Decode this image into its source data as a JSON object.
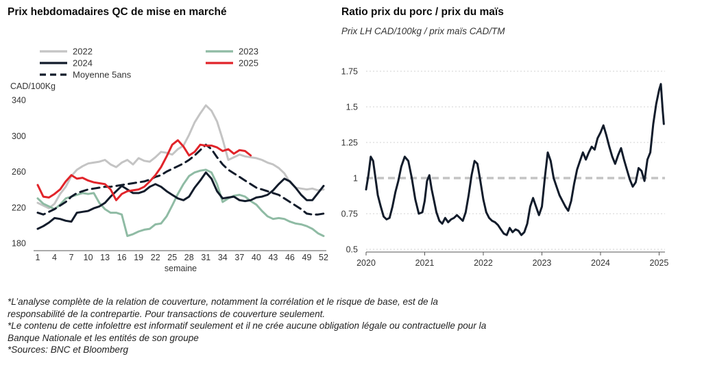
{
  "chart_data": [
    {
      "type": "line",
      "title": "Prix hebdomadaires QC de mise en marché",
      "ylabel": "CAD/100Kg",
      "xlabel": "semaine",
      "ylim": [
        180,
        340
      ],
      "yticks": [
        180,
        220,
        260,
        300,
        340
      ],
      "xlim": [
        1,
        52
      ],
      "xticks": [
        1,
        4,
        7,
        10,
        13,
        16,
        19,
        22,
        25,
        28,
        31,
        34,
        37,
        40,
        43,
        46,
        49,
        52
      ],
      "legend": "top",
      "grid": false,
      "series": [
        {
          "name": "2022",
          "color": "#c4c4c4",
          "dash": "solid",
          "x": [
            1,
            2,
            3,
            4,
            5,
            6,
            7,
            8,
            9,
            10,
            11,
            12,
            13,
            14,
            15,
            16,
            17,
            18,
            19,
            20,
            21,
            22,
            23,
            24,
            25,
            26,
            27,
            28,
            29,
            30,
            31,
            32,
            33,
            34,
            35,
            36,
            37,
            38,
            39,
            40,
            41,
            42,
            43,
            44,
            45,
            46,
            47,
            48,
            49,
            50,
            51,
            52
          ],
          "values": [
            225,
            222,
            219,
            224,
            235,
            243,
            255,
            262,
            266,
            269,
            270,
            271,
            273,
            268,
            265,
            270,
            273,
            268,
            275,
            272,
            271,
            276,
            282,
            281,
            279,
            285,
            289,
            301,
            315,
            325,
            334,
            328,
            316,
            296,
            273,
            276,
            279,
            277,
            276,
            275,
            273,
            270,
            268,
            264,
            258,
            248,
            242,
            241,
            240,
            241,
            239,
            240
          ]
        },
        {
          "name": "2023",
          "color": "#8fbba4",
          "dash": "solid",
          "x": [
            1,
            2,
            3,
            4,
            5,
            6,
            7,
            8,
            9,
            10,
            11,
            12,
            13,
            14,
            15,
            16,
            17,
            18,
            19,
            20,
            21,
            22,
            23,
            24,
            25,
            26,
            27,
            28,
            29,
            30,
            31,
            32,
            33,
            34,
            35,
            36,
            37,
            38,
            39,
            40,
            41,
            42,
            43,
            44,
            45,
            46,
            47,
            48,
            49,
            50,
            51,
            52
          ],
          "values": [
            230,
            224,
            221,
            218,
            223,
            230,
            232,
            234,
            236,
            235,
            236,
            225,
            218,
            214,
            214,
            212,
            188,
            190,
            193,
            195,
            196,
            201,
            202,
            210,
            222,
            235,
            246,
            255,
            259,
            261,
            262,
            259,
            246,
            226,
            230,
            233,
            234,
            232,
            227,
            223,
            216,
            210,
            207,
            208,
            207,
            204,
            202,
            201,
            199,
            196,
            191,
            188
          ]
        },
        {
          "name": "2024",
          "color": "#121c2b",
          "dash": "solid",
          "x": [
            1,
            2,
            3,
            4,
            5,
            6,
            7,
            8,
            9,
            10,
            11,
            12,
            13,
            14,
            15,
            16,
            17,
            18,
            19,
            20,
            21,
            22,
            23,
            24,
            25,
            26,
            27,
            28,
            29,
            30,
            31,
            32,
            33,
            34,
            35,
            36,
            37,
            38,
            39,
            40,
            41,
            42,
            43,
            44,
            45,
            46,
            47,
            48,
            49,
            50,
            51,
            52
          ],
          "values": [
            196,
            199,
            203,
            208,
            207,
            205,
            204,
            214,
            215,
            216,
            219,
            221,
            225,
            232,
            238,
            244,
            240,
            236,
            236,
            238,
            243,
            246,
            243,
            238,
            234,
            230,
            228,
            232,
            242,
            250,
            259,
            252,
            238,
            230,
            231,
            232,
            228,
            227,
            228,
            231,
            232,
            234,
            239,
            246,
            252,
            249,
            242,
            234,
            228,
            228,
            236,
            244
          ]
        },
        {
          "name": "2025",
          "color": "#e1242a",
          "dash": "solid",
          "x": [
            1,
            2,
            3,
            4,
            5,
            6,
            7,
            8,
            9,
            10,
            11,
            12,
            13,
            14,
            15,
            16,
            17,
            18,
            19,
            20,
            21,
            22,
            23,
            24,
            25,
            26,
            27,
            28,
            29,
            30,
            31,
            32,
            33,
            34,
            35,
            36,
            37,
            38,
            39
          ],
          "values": [
            245,
            232,
            231,
            235,
            240,
            249,
            256,
            252,
            253,
            250,
            248,
            247,
            246,
            240,
            228,
            235,
            238,
            239,
            240,
            243,
            249,
            256,
            265,
            277,
            290,
            295,
            288,
            278,
            282,
            290,
            289,
            289,
            287,
            283,
            285,
            280,
            284,
            283,
            278
          ]
        },
        {
          "name": "Moyenne 5ans",
          "color": "#121c2b",
          "dash": "dashed",
          "x": [
            1,
            2,
            3,
            4,
            5,
            6,
            7,
            8,
            9,
            10,
            11,
            12,
            13,
            14,
            15,
            16,
            17,
            18,
            19,
            20,
            21,
            22,
            23,
            24,
            25,
            26,
            27,
            28,
            29,
            30,
            31,
            32,
            33,
            34,
            35,
            36,
            37,
            38,
            39,
            40,
            41,
            42,
            43,
            44,
            45,
            46,
            47,
            48,
            49,
            50,
            51,
            52
          ],
          "values": [
            214,
            212,
            215,
            218,
            222,
            226,
            232,
            236,
            238,
            240,
            241,
            242,
            243,
            243,
            244,
            245,
            246,
            247,
            248,
            249,
            251,
            254,
            256,
            260,
            263,
            266,
            269,
            273,
            278,
            284,
            290,
            285,
            276,
            268,
            262,
            258,
            254,
            250,
            246,
            242,
            240,
            238,
            236,
            234,
            230,
            226,
            222,
            218,
            213,
            212,
            212,
            213
          ]
        }
      ]
    },
    {
      "type": "line",
      "title": "Ratio prix du porc / prix du maïs",
      "subtitle": "Prix LH CAD/100kg / prix maïs CAD/TM",
      "ylim": [
        0.5,
        1.75
      ],
      "yticks": [
        0.5,
        0.75,
        1,
        1.25,
        1.5,
        1.75
      ],
      "ytick_labels": [
        "0.5",
        "0.75",
        "1",
        "1.25",
        "1.5",
        "1.75"
      ],
      "xlim": [
        2020.0,
        2025.1
      ],
      "xticks": [
        "2020",
        "2021",
        "2022",
        "2023",
        "2024",
        "2025"
      ],
      "grid": "horizontal dotted",
      "reference_line": {
        "value": 1,
        "color": "#c4c4c4",
        "dash": "dashed"
      },
      "series": [
        {
          "color": "#121c2b",
          "x": [
            2020.0,
            2020.04,
            2020.08,
            2020.12,
            2020.16,
            2020.2,
            2020.25,
            2020.3,
            2020.35,
            2020.4,
            2020.45,
            2020.5,
            2020.55,
            2020.6,
            2020.66,
            2020.72,
            2020.78,
            2020.84,
            2020.9,
            2020.96,
            2021.0,
            2021.04,
            2021.08,
            2021.12,
            2021.16,
            2021.2,
            2021.25,
            2021.3,
            2021.35,
            2021.4,
            2021.45,
            2021.5,
            2021.55,
            2021.6,
            2021.65,
            2021.7,
            2021.75,
            2021.8,
            2021.85,
            2021.9,
            2021.95,
            2022.0,
            2022.05,
            2022.1,
            2022.15,
            2022.2,
            2022.25,
            2022.3,
            2022.35,
            2022.4,
            2022.45,
            2022.5,
            2022.55,
            2022.6,
            2022.65,
            2022.7,
            2022.75,
            2022.8,
            2022.85,
            2022.9,
            2022.95,
            2023.0,
            2023.05,
            2023.1,
            2023.15,
            2023.2,
            2023.25,
            2023.3,
            2023.35,
            2023.4,
            2023.45,
            2023.5,
            2023.55,
            2023.6,
            2023.65,
            2023.7,
            2023.75,
            2023.8,
            2023.85,
            2023.9,
            2023.95,
            2024.0,
            2024.05,
            2024.1,
            2024.15,
            2024.2,
            2024.25,
            2024.3,
            2024.35,
            2024.4,
            2024.45,
            2024.5,
            2024.55,
            2024.6,
            2024.65,
            2024.7,
            2024.75,
            2024.8,
            2024.85,
            2024.9,
            2024.95,
            2025.0,
            2025.03,
            2025.06,
            2025.08
          ],
          "values": [
            0.92,
            1.02,
            1.15,
            1.12,
            1.0,
            0.88,
            0.8,
            0.73,
            0.71,
            0.72,
            0.8,
            0.9,
            0.98,
            1.08,
            1.15,
            1.12,
            1.0,
            0.85,
            0.75,
            0.76,
            0.84,
            0.98,
            1.02,
            0.92,
            0.84,
            0.76,
            0.7,
            0.68,
            0.72,
            0.69,
            0.71,
            0.72,
            0.74,
            0.72,
            0.7,
            0.76,
            0.88,
            1.02,
            1.12,
            1.1,
            0.98,
            0.85,
            0.76,
            0.72,
            0.7,
            0.69,
            0.67,
            0.64,
            0.61,
            0.6,
            0.65,
            0.62,
            0.64,
            0.63,
            0.6,
            0.62,
            0.68,
            0.8,
            0.86,
            0.8,
            0.74,
            0.8,
            1.0,
            1.18,
            1.12,
            1.0,
            0.94,
            0.88,
            0.84,
            0.8,
            0.77,
            0.84,
            0.96,
            1.06,
            1.12,
            1.18,
            1.13,
            1.18,
            1.22,
            1.2,
            1.28,
            1.32,
            1.37,
            1.3,
            1.22,
            1.15,
            1.1,
            1.16,
            1.21,
            1.13,
            1.06,
            0.99,
            0.94,
            0.97,
            1.07,
            1.05,
            0.98,
            1.13,
            1.18,
            1.38,
            1.52,
            1.62,
            1.66,
            1.48,
            1.38
          ]
        }
      ]
    }
  ],
  "footnotes": [
    "*L’analyse complète de la relation de couverture, notamment la corrélation et le risque de base, est de la",
    "responsabilité de la contrepartie. Pour transactions de couverture seulement.",
    "*Le contenu de cette infolettre est informatif seulement et il ne crée aucune obligation légale ou contractuelle pour la",
    "Banque Nationale et les entités de son groupe",
    "*Sources: BNC et Bloomberg"
  ]
}
